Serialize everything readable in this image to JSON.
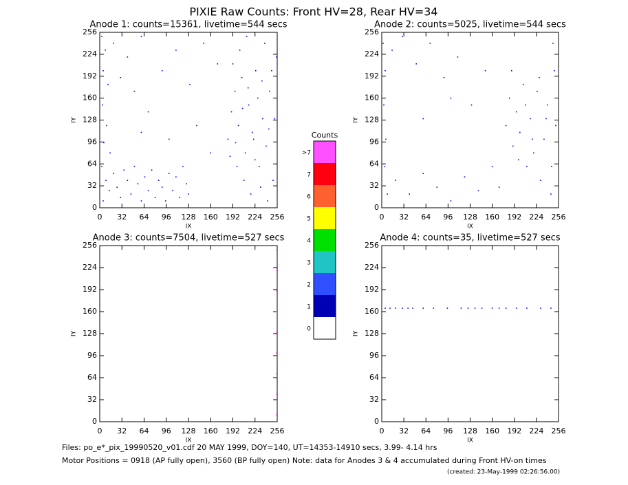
{
  "title": "PIXIE Raw Counts:  Front HV=28, Rear HV=34",
  "colorbar": {
    "title": "Counts",
    "labels": [
      "0",
      "1",
      "2",
      "3",
      "4",
      "5",
      "6",
      "7",
      ">7"
    ],
    "colors": [
      "#ffffff",
      "#0000b4",
      "#3050ff",
      "#20c4c4",
      "#00e000",
      "#ffff00",
      "#ff6030",
      "#ff0010",
      "#ff50ff"
    ]
  },
  "footer": [
    "Files: po_e*_pix_19990520_v01.cdf   20 MAY 1999, DOY=140, UT=14353-14910 secs,  3.99- 4.14 hrs",
    "Motor Positions = 0918 (AP fully open), 3560 (BP fully open)   Note: data for Anodes 3 & 4 accumulated during Front HV-on times",
    "(created: 23-May-1999 02:26:56.00)"
  ],
  "chart_data": [
    {
      "type": "scatter",
      "title": "Anode 1: counts=15361, livetime=544 secs",
      "xlabel": "IX",
      "ylabel": "IY",
      "xlim": [
        0,
        256
      ],
      "ylim": [
        0,
        256
      ],
      "xticks": [
        0,
        32,
        64,
        96,
        128,
        160,
        192,
        224,
        256
      ],
      "yticks": [
        0,
        32,
        64,
        96,
        128,
        160,
        192,
        224,
        256
      ],
      "color": "#0000ff",
      "x": [
        3,
        8,
        5,
        12,
        4,
        10,
        6,
        15,
        3,
        9,
        14,
        5,
        20,
        25,
        30,
        35,
        40,
        45,
        50,
        55,
        60,
        65,
        70,
        75,
        80,
        85,
        90,
        95,
        100,
        105,
        110,
        115,
        120,
        125,
        128,
        20,
        40,
        60,
        30,
        50,
        70,
        90,
        110,
        130,
        150,
        170,
        100,
        60,
        140,
        160,
        185,
        190,
        195,
        200,
        205,
        210,
        215,
        220,
        225,
        230,
        235,
        240,
        245,
        250,
        255,
        198,
        208,
        218,
        228,
        238,
        248,
        192,
        202,
        212,
        222,
        232,
        242,
        252,
        188,
        196,
        206,
        214,
        224,
        234,
        244
      ],
      "y": [
        250,
        230,
        200,
        180,
        150,
        120,
        95,
        80,
        60,
        40,
        25,
        10,
        50,
        30,
        15,
        55,
        40,
        20,
        60,
        35,
        10,
        45,
        25,
        55,
        15,
        40,
        30,
        10,
        50,
        25,
        45,
        15,
        60,
        35,
        20,
        240,
        220,
        250,
        190,
        170,
        140,
        200,
        230,
        180,
        240,
        210,
        100,
        110,
        120,
        80,
        100,
        140,
        170,
        120,
        190,
        80,
        150,
        110,
        200,
        60,
        130,
        90,
        170,
        40,
        220,
        60,
        40,
        20,
        160,
        240,
        200,
        210,
        230,
        250,
        100,
        30,
        10,
        130,
        75,
        95,
        145,
        175,
        70,
        185,
        115
      ]
    },
    {
      "type": "scatter",
      "title": "Anode 2: counts=5025, livetime=544 secs",
      "xlabel": "IX",
      "ylabel": "IY",
      "xlim": [
        0,
        256
      ],
      "ylim": [
        0,
        256
      ],
      "xticks": [
        0,
        32,
        64,
        96,
        128,
        160,
        192,
        224,
        256
      ],
      "yticks": [
        0,
        32,
        64,
        96,
        128,
        160,
        192,
        224,
        256
      ],
      "color": "#0000ff",
      "x": [
        2,
        5,
        3,
        6,
        4,
        8,
        15,
        30,
        50,
        70,
        90,
        110,
        130,
        150,
        20,
        40,
        60,
        80,
        100,
        120,
        140,
        160,
        180,
        185,
        190,
        195,
        200,
        205,
        210,
        215,
        220,
        225,
        230,
        235,
        240,
        245,
        248,
        250,
        252,
        246,
        188,
        198,
        208,
        218,
        228,
        238,
        170,
        60,
        100
      ],
      "y": [
        240,
        200,
        150,
        100,
        60,
        20,
        230,
        250,
        210,
        240,
        190,
        220,
        150,
        200,
        40,
        20,
        50,
        30,
        10,
        45,
        25,
        60,
        120,
        160,
        90,
        140,
        110,
        180,
        60,
        130,
        80,
        170,
        40,
        100,
        150,
        20,
        240,
        200,
        120,
        60,
        200,
        70,
        150,
        100,
        190,
        130,
        30,
        130,
        160
      ]
    },
    {
      "type": "scatter",
      "title": "Anode 3: counts=7504, livetime=527 secs",
      "xlabel": "IX",
      "ylabel": "IY",
      "xlim": [
        0,
        256
      ],
      "ylim": [
        0,
        256
      ],
      "xticks": [
        0,
        32,
        64,
        96,
        128,
        160,
        192,
        224,
        256
      ],
      "yticks": [
        0,
        32,
        64,
        96,
        128,
        160,
        192,
        224,
        256
      ],
      "color": "#ff50ff",
      "x": [
        255,
        255,
        255,
        255,
        255,
        255,
        255,
        255,
        255
      ],
      "y": [
        10,
        40,
        70,
        100,
        130,
        160,
        190,
        220,
        250
      ]
    },
    {
      "type": "scatter",
      "title": "Anode 4: counts=35, livetime=527 secs",
      "xlabel": "IX",
      "ylabel": "IY",
      "xlim": [
        0,
        256
      ],
      "ylim": [
        0,
        256
      ],
      "xticks": [
        0,
        32,
        64,
        96,
        128,
        160,
        192,
        224,
        256
      ],
      "yticks": [
        0,
        32,
        64,
        96,
        128,
        160,
        192,
        224,
        256
      ],
      "color": "#0000ff",
      "x": [
        5,
        12,
        20,
        30,
        38,
        45,
        60,
        75,
        95,
        115,
        125,
        135,
        145,
        160,
        170,
        180,
        195,
        210,
        230,
        245
      ],
      "y": [
        165,
        165,
        165,
        165,
        165,
        165,
        165,
        165,
        165,
        165,
        165,
        165,
        165,
        165,
        165,
        165,
        165,
        165,
        165,
        165
      ]
    }
  ]
}
